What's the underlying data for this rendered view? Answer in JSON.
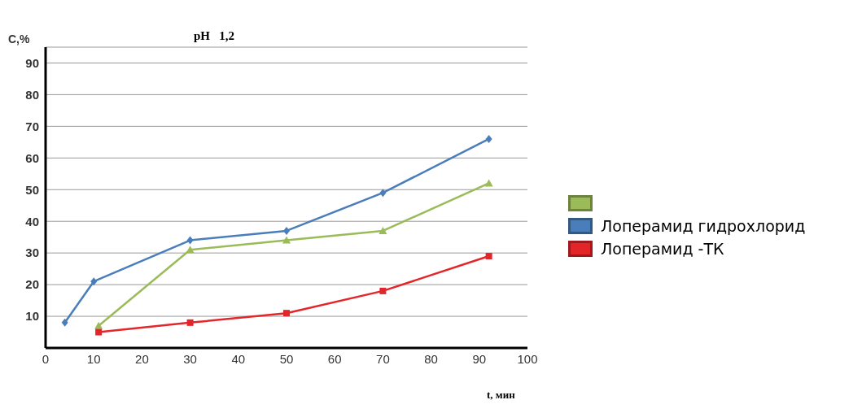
{
  "chart_data": {
    "type": "line",
    "title": "pH   1,2",
    "xlabel": "t, мин",
    "ylabel": "C,%",
    "xlim": [
      0,
      100
    ],
    "xticks": [
      0,
      10,
      20,
      30,
      40,
      50,
      60,
      70,
      80,
      90,
      100
    ],
    "ylim": [
      0,
      95
    ],
    "yticks": [
      10,
      20,
      30,
      40,
      50,
      60,
      70,
      80,
      90
    ],
    "grid": "y",
    "legend": "right",
    "series": [
      {
        "color": "#9bbb59",
        "marker": "triangle",
        "x": [
          11,
          30,
          50,
          70,
          92
        ],
        "values": [
          7,
          31,
          34,
          37,
          52
        ]
      },
      {
        "name": "Лоперамид гидрохлорид",
        "color": "#4a7ebb",
        "marker": "diamond",
        "x": [
          4,
          10,
          30,
          50,
          70,
          92
        ],
        "values": [
          8,
          21,
          34,
          37,
          49,
          66
        ]
      },
      {
        "name": "Лоперамид -ТК",
        "color": "#e3262a",
        "marker": "square",
        "x": [
          11,
          30,
          50,
          70,
          92
        ],
        "values": [
          5,
          8,
          11,
          18,
          29
        ]
      }
    ]
  }
}
